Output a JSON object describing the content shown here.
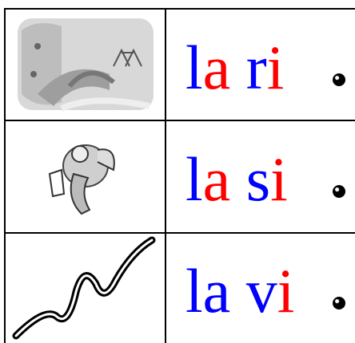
{
  "table": {
    "rows": [
      {
        "segments": [
          {
            "text": "l",
            "color": "#0000ff"
          },
          {
            "text": "a",
            "color": "#ff0000"
          },
          {
            "text": " r",
            "color": "#0000ff"
          },
          {
            "text": "i",
            "color": "#ff0000"
          }
        ]
      },
      {
        "segments": [
          {
            "text": "l",
            "color": "#0000ff"
          },
          {
            "text": "a",
            "color": "#ff0000"
          },
          {
            "text": " s",
            "color": "#0000ff"
          },
          {
            "text": "i",
            "color": "#ff0000"
          }
        ]
      },
      {
        "segments": [
          {
            "text": "la v",
            "color": "#0000ff"
          },
          {
            "text": "i",
            "color": "#ff0000"
          }
        ]
      }
    ]
  }
}
